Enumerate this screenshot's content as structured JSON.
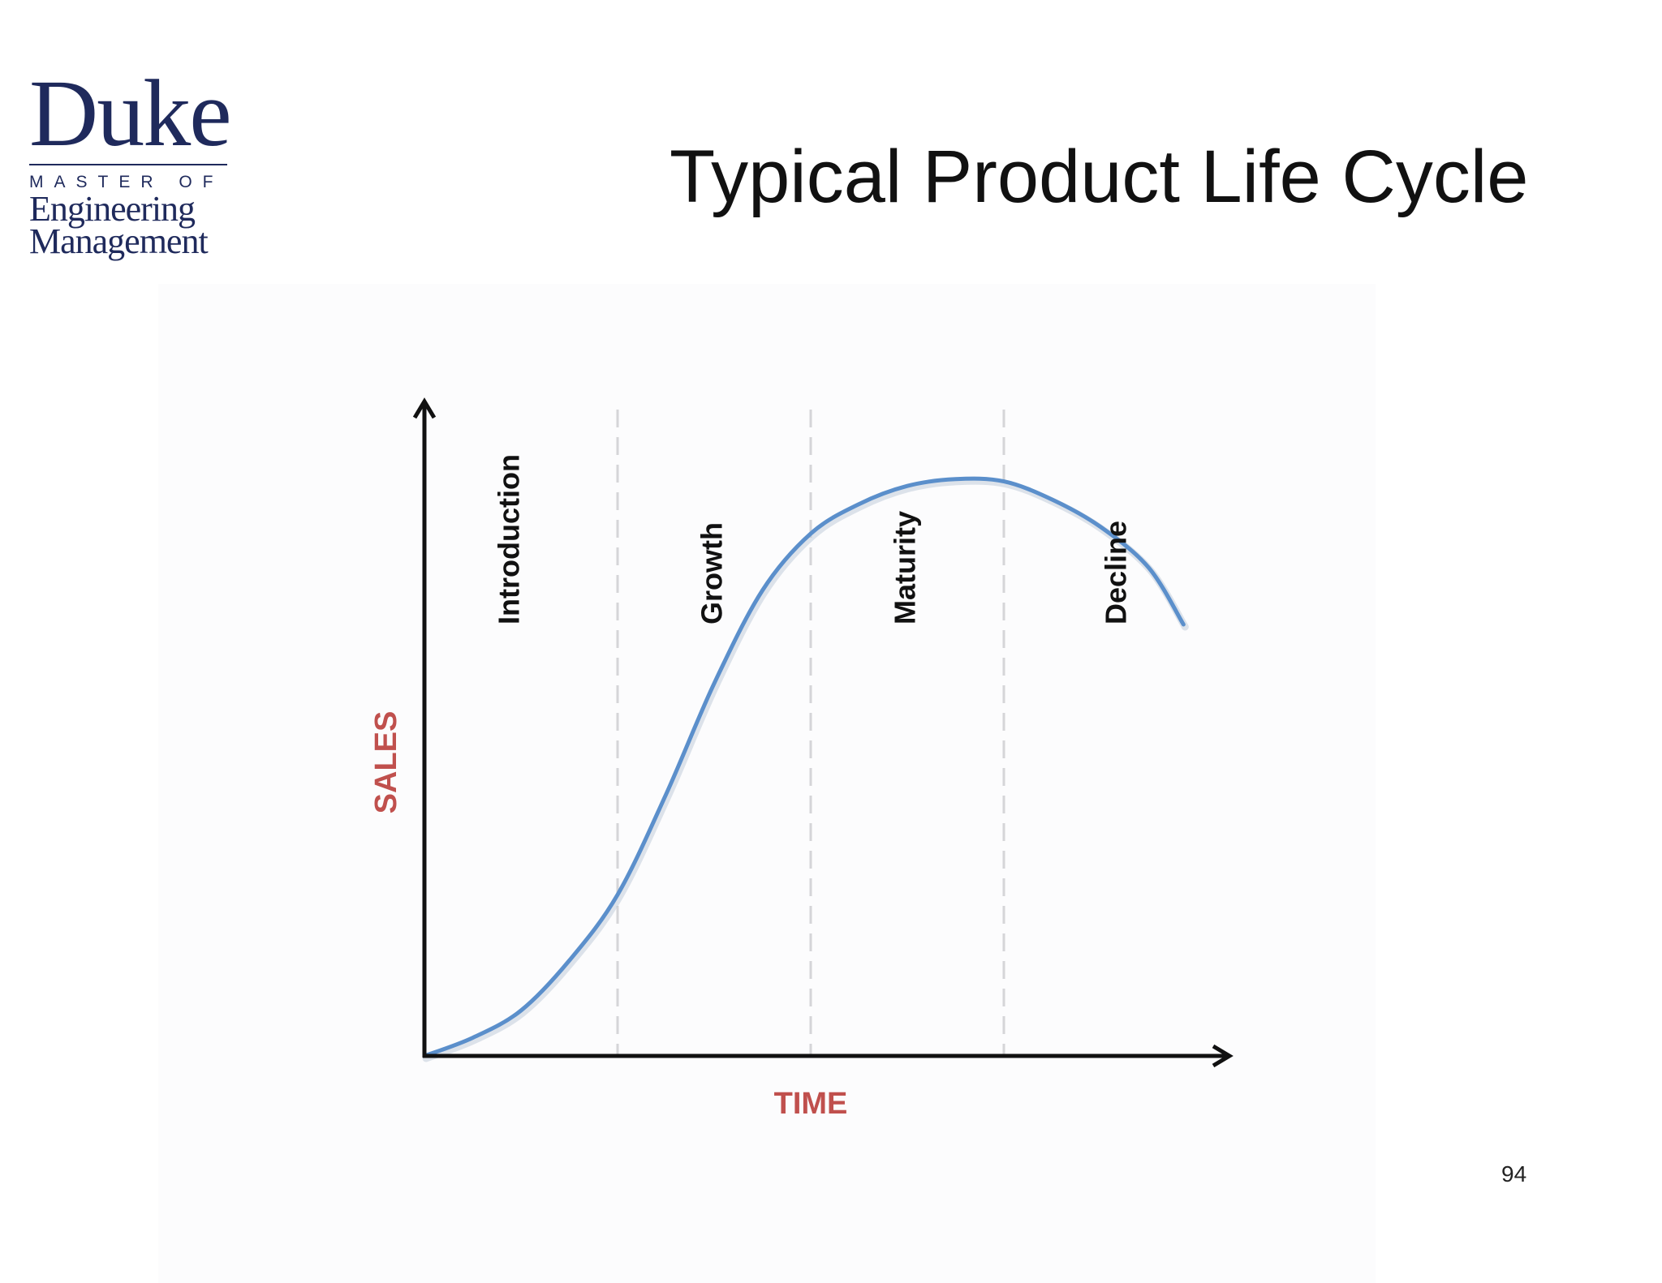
{
  "slide": {
    "title": "Typical Product Life Cycle",
    "page_number": "94"
  },
  "logo": {
    "name": "Duke",
    "line1": "MASTER OF",
    "line2": "Engineering",
    "line3": "Management",
    "color": "#1f2a5c"
  },
  "chart_data": {
    "type": "line",
    "title": "",
    "xlabel": "TIME",
    "ylabel": "SALES",
    "xlim": [
      0,
      4
    ],
    "ylim": [
      0,
      4
    ],
    "grid": false,
    "stages": [
      "Introduction",
      "Growth",
      "Maturity",
      "Decline"
    ],
    "stage_boundaries": [
      1,
      2,
      3
    ],
    "series": [
      {
        "name": "Sales",
        "color": "#5b8fcb",
        "x": [
          0,
          0.25,
          0.5,
          0.75,
          1.0,
          1.25,
          1.5,
          1.75,
          2.0,
          2.25,
          2.5,
          2.75,
          3.0,
          3.25,
          3.5,
          3.75,
          3.93
        ],
        "y": [
          0,
          0.08,
          0.2,
          0.42,
          0.71,
          1.15,
          1.64,
          2.05,
          2.3,
          2.43,
          2.51,
          2.54,
          2.53,
          2.45,
          2.33,
          2.15,
          1.9
        ]
      }
    ],
    "axis_label_color": "#c0504d",
    "axis_color": "#111111",
    "divider_color": "#d5d5d8"
  }
}
